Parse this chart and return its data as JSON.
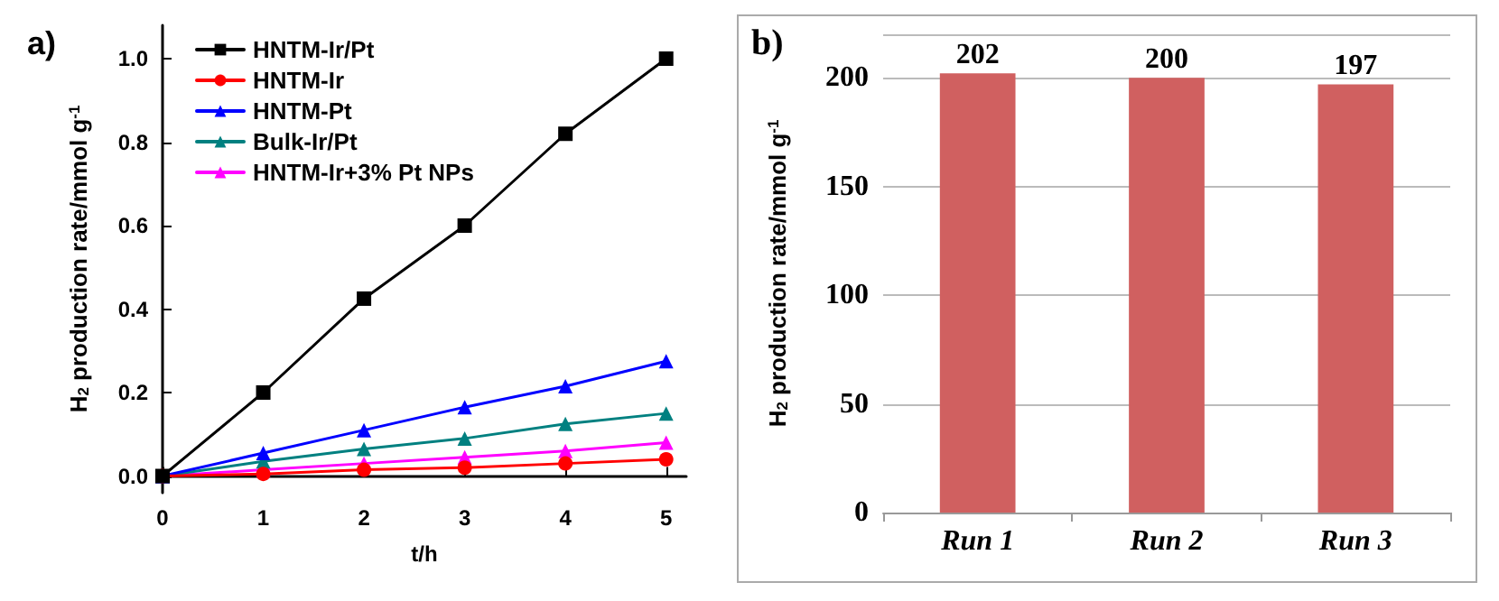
{
  "chart_data": [
    {
      "type": "line",
      "title": "a)",
      "xlabel": "t/h",
      "ylabel": "H$_{2}$ production rate/mmol g$^{-1}$",
      "x": [
        0,
        1,
        2,
        3,
        4,
        5
      ],
      "series": [
        {
          "name": "HNTM-Ir/Pt",
          "color": "#000000",
          "marker": "square",
          "values": [
            0,
            0.2,
            0.425,
            0.6,
            0.82,
            1.0
          ]
        },
        {
          "name": "HNTM-Ir",
          "color": "#ff0000",
          "marker": "circle",
          "values": [
            0,
            0.005,
            0.015,
            0.02,
            0.03,
            0.04
          ]
        },
        {
          "name": "HNTM-Pt",
          "color": "#0000ff",
          "marker": "triangle",
          "values": [
            0,
            0.055,
            0.11,
            0.165,
            0.215,
            0.275
          ]
        },
        {
          "name": "Bulk-Ir/Pt",
          "color": "#008080",
          "marker": "triangle",
          "values": [
            0,
            0.035,
            0.065,
            0.09,
            0.125,
            0.15
          ]
        },
        {
          "name": "HNTM-Ir+3% Pt NPs",
          "color": "#ff00ff",
          "marker": "triangle",
          "values": [
            0,
            0.015,
            0.03,
            0.045,
            0.06,
            0.08
          ]
        }
      ],
      "xlim": [
        0,
        5.2
      ],
      "xticks": [
        0,
        1,
        2,
        3,
        4,
        5
      ],
      "ylim": [
        -0.04,
        1.08
      ],
      "yticks": [
        {
          "value": 0,
          "label": "0.0"
        },
        {
          "value": 0.2,
          "label": "0.2"
        },
        {
          "value": 0.4,
          "label": "0.4"
        },
        {
          "value": 0.6,
          "label": "0.6"
        },
        {
          "value": 0.8,
          "label": "0.8"
        },
        {
          "value": 1.0,
          "label": "1.0"
        }
      ],
      "grid": false,
      "legend": "top left",
      "line_style": "solid"
    },
    {
      "type": "bar",
      "title": "b)",
      "ylabel": "H$_{2}$ production rate/mmol g$^{-1}$",
      "categories": [
        "Run 1",
        "Run 2",
        "Run 3"
      ],
      "values": [
        202,
        200,
        197
      ],
      "color": "#d06060",
      "data_labels": true,
      "ylim": [
        0,
        220
      ],
      "yticks": [
        0,
        50,
        100,
        150,
        200
      ],
      "grid": "y",
      "legend": false
    }
  ]
}
